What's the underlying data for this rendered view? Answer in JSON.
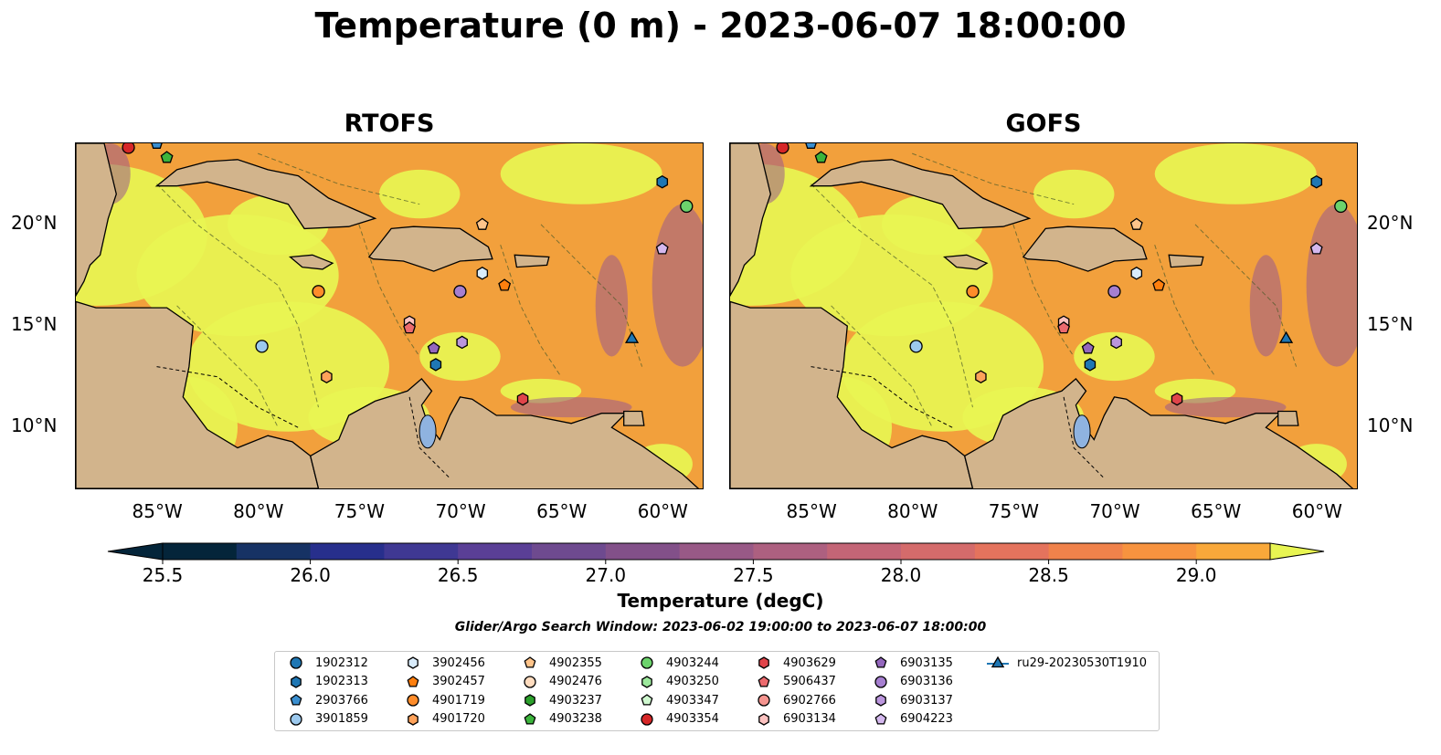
{
  "title": "Temperature (0 m) - 2023-06-07 18:00:00",
  "panels": [
    {
      "title": "RTOFS"
    },
    {
      "title": "GOFS"
    }
  ],
  "x_ticks": [
    "85°W",
    "80°W",
    "75°W",
    "70°W",
    "65°W",
    "60°W"
  ],
  "y_ticks": [
    "20°N",
    "15°N",
    "10°N"
  ],
  "map": {
    "lon_range": [
      -89,
      -58
    ],
    "lat_range": [
      7,
      24
    ],
    "land_color": "#d2b48c",
    "warm_color": "#f2a03c",
    "hot_color": "#e8f552",
    "cool_color": "#9a5a8c",
    "lake_color": "#8fb3e0"
  },
  "colorbar": {
    "title": "Temperature (degC)",
    "min": 25.5,
    "max": 29.25,
    "step": 0.25,
    "tick_labels": [
      "25.5",
      "26.0",
      "26.5",
      "27.0",
      "27.5",
      "28.0",
      "28.5",
      "29.0"
    ],
    "tick_values": [
      25.5,
      26.0,
      26.5,
      27.0,
      27.5,
      28.0,
      28.5,
      29.0
    ],
    "colors": [
      "#04253a",
      "#163264",
      "#272f8c",
      "#3f3893",
      "#5a3f96",
      "#6e4a8f",
      "#825089",
      "#985986",
      "#ad6080",
      "#c36576",
      "#d46b6b",
      "#e4735d",
      "#f0824b",
      "#f7933f",
      "#f9a83a",
      "#f7c33f",
      "#f3dd48"
    ],
    "extend_low_color": "#04253a",
    "extend_high_color": "#e8f552"
  },
  "window_note": "Glider/Argo Search Window: 2023-06-02 19:00:00 to 2023-06-07 18:00:00",
  "legend_items": [
    {
      "label": "1902312",
      "shape": "circle",
      "color": "#1f77b4"
    },
    {
      "label": "1902313",
      "shape": "hexagon",
      "color": "#1f77b4"
    },
    {
      "label": "2903766",
      "shape": "pentagon",
      "color": "#3a8fd0"
    },
    {
      "label": "3901859",
      "shape": "circle",
      "color": "#9cc9ee"
    },
    {
      "label": "3902456",
      "shape": "hexagon",
      "color": "#d9ecfb"
    },
    {
      "label": "3902457",
      "shape": "pentagon",
      "color": "#ff7f0e"
    },
    {
      "label": "4901719",
      "shape": "circle",
      "color": "#ff8c2a"
    },
    {
      "label": "4901720",
      "shape": "hexagon",
      "color": "#ffa25a"
    },
    {
      "label": "4902355",
      "shape": "pentagon",
      "color": "#ffc48a"
    },
    {
      "label": "4902476",
      "shape": "circle",
      "color": "#ffdcbf"
    },
    {
      "label": "4903237",
      "shape": "hexagon",
      "color": "#2ca02c"
    },
    {
      "label": "4903238",
      "shape": "pentagon",
      "color": "#3cb43c"
    },
    {
      "label": "4903244",
      "shape": "circle",
      "color": "#6cd36c"
    },
    {
      "label": "4903250",
      "shape": "hexagon",
      "color": "#9ce89c"
    },
    {
      "label": "4903347",
      "shape": "pentagon",
      "color": "#cff8cf"
    },
    {
      "label": "4903354",
      "shape": "circle",
      "color": "#d62728"
    },
    {
      "label": "4903629",
      "shape": "hexagon",
      "color": "#e0444a"
    },
    {
      "label": "5906437",
      "shape": "pentagon",
      "color": "#ec6a6e"
    },
    {
      "label": "6902766",
      "shape": "circle",
      "color": "#f5948f"
    },
    {
      "label": "6903134",
      "shape": "hexagon",
      "color": "#fcc2c0"
    },
    {
      "label": "6903135",
      "shape": "pentagon",
      "color": "#9467bd"
    },
    {
      "label": "6903136",
      "shape": "circle",
      "color": "#a67fd0"
    },
    {
      "label": "6903137",
      "shape": "hexagon",
      "color": "#bb96dd"
    },
    {
      "label": "6904223",
      "shape": "pentagon",
      "color": "#d4b8ee"
    },
    {
      "label": "ru29-20230530T1910",
      "shape": "triangle-line",
      "color": "#1f77b4"
    }
  ],
  "markers": [
    {
      "label": "4903354",
      "lon": -86.4,
      "lat": 23.8
    },
    {
      "label": "2903766",
      "lon": -85.0,
      "lat": 24.0
    },
    {
      "label": "4903238",
      "lon": -84.5,
      "lat": 23.3
    },
    {
      "label": "1902313",
      "lon": -60.0,
      "lat": 22.1
    },
    {
      "label": "4903244",
      "lon": -58.8,
      "lat": 20.9
    },
    {
      "label": "4902355",
      "lon": -68.9,
      "lat": 20.0
    },
    {
      "label": "6904223",
      "lon": -60.0,
      "lat": 18.8
    },
    {
      "label": "3902456",
      "lon": -68.9,
      "lat": 17.6
    },
    {
      "label": "3902457",
      "lon": -67.8,
      "lat": 17.0
    },
    {
      "label": "4901719",
      "lon": -77.0,
      "lat": 16.7
    },
    {
      "label": "6903136",
      "lon": -70.0,
      "lat": 16.7
    },
    {
      "label": "6903134",
      "lon": -72.5,
      "lat": 15.2
    },
    {
      "label": "5906437",
      "lon": -72.5,
      "lat": 14.9
    },
    {
      "label": "3901859",
      "lon": -79.8,
      "lat": 14.0
    },
    {
      "label": "6903135",
      "lon": -71.3,
      "lat": 13.9
    },
    {
      "label": "6903137",
      "lon": -69.9,
      "lat": 14.2
    },
    {
      "label": "1902313",
      "lon": -71.2,
      "lat": 13.1
    },
    {
      "label": "4901720",
      "lon": -76.6,
      "lat": 12.5
    },
    {
      "label": "4903629",
      "lon": -66.9,
      "lat": 11.4
    },
    {
      "label": "ru29-20230530T1910",
      "lon": -61.5,
      "lat": 14.4
    }
  ]
}
